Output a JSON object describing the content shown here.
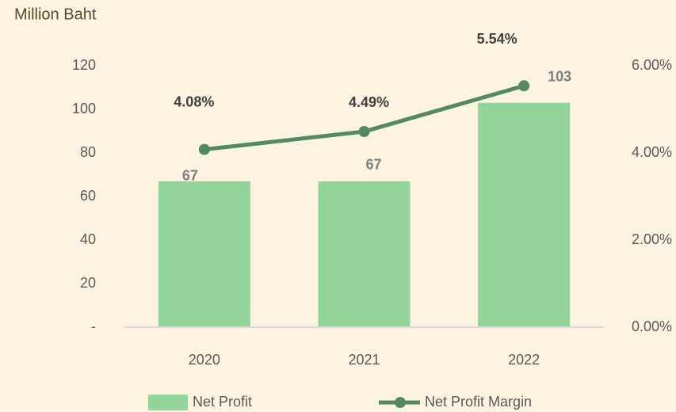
{
  "chart_data": {
    "type": "bar",
    "y_label": "Million Baht",
    "categories": [
      "2020",
      "2021",
      "2022"
    ],
    "series": [
      {
        "name": "Net Profit",
        "type": "bar",
        "color": "#93d49b",
        "values": [
          67,
          67,
          103
        ]
      },
      {
        "name": "Net Profit Margin",
        "type": "line",
        "axis": "y2",
        "color": "#548a63",
        "values": [
          4.08,
          4.49,
          5.54
        ],
        "value_labels": [
          "4.08%",
          "4.49%",
          "5.54%"
        ]
      }
    ],
    "ylim": [
      0,
      120
    ],
    "yticks": [
      {
        "value": 0,
        "label": "-"
      },
      20,
      40,
      60,
      80,
      100,
      120
    ],
    "y2lim": [
      0,
      6
    ],
    "y2ticks": [
      {
        "value": 0,
        "label": "0.00%"
      },
      {
        "value": 2,
        "label": "2.00%"
      },
      {
        "value": 4,
        "label": "4.00%"
      },
      {
        "value": 6,
        "label": "6.00%"
      }
    ],
    "grid": false,
    "legend": "bottom"
  }
}
